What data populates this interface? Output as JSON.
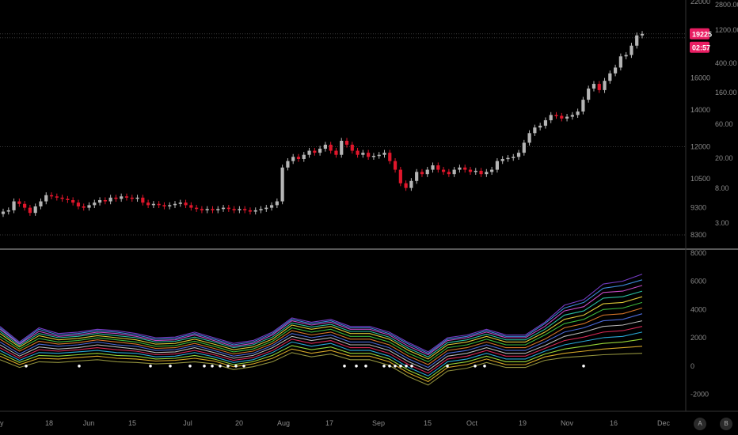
{
  "chart_data": [
    {
      "type": "candlestick",
      "title": "",
      "scale": "log",
      "ylim": [
        7900,
        22000
      ],
      "left_axis_ticks": [
        8300,
        9300,
        10500,
        12000,
        14000,
        16000,
        19225,
        22000
      ],
      "left_axis_labels": [
        "8300",
        "9300",
        "10500",
        "12000",
        "14000",
        "16000",
        "19225",
        "22000"
      ],
      "right_axis_labels": [
        "3.00",
        "8.00",
        "20.00",
        "60.00",
        "160.00",
        "400.00",
        "1200.00",
        "2800.00"
      ],
      "last_price": "19225",
      "countdown": "02:57",
      "colors": {
        "up": "#b5b5b5",
        "down": "#e0162b",
        "badge": "#e91e63"
      },
      "close_series": [
        9150,
        9200,
        9550,
        9450,
        9300,
        9100,
        9350,
        9550,
        9800,
        9750,
        9700,
        9650,
        9600,
        9500,
        9350,
        9300,
        9400,
        9500,
        9600,
        9550,
        9700,
        9650,
        9750,
        9700,
        9650,
        9700,
        9500,
        9400,
        9450,
        9400,
        9350,
        9400,
        9450,
        9500,
        9400,
        9300,
        9250,
        9200,
        9250,
        9200,
        9250,
        9300,
        9250,
        9200,
        9250,
        9200,
        9150,
        9200,
        9250,
        9300,
        9400,
        9550,
        11000,
        11300,
        11500,
        11400,
        11600,
        11800,
        11700,
        11900,
        12100,
        11800,
        11600,
        12300,
        12100,
        11800,
        11600,
        11700,
        11500,
        11550,
        11600,
        11700,
        11300,
        10900,
        10300,
        10100,
        10400,
        10800,
        10700,
        10900,
        11100,
        10900,
        10800,
        10700,
        10900,
        11000,
        10900,
        10800,
        10850,
        10700,
        10800,
        10900,
        11300,
        11400,
        11450,
        11500,
        11700,
        12200,
        12700,
        13000,
        13100,
        13400,
        13700,
        13650,
        13500,
        13600,
        13700,
        13900,
        14600,
        15300,
        15600,
        15200,
        15800,
        16300,
        16700,
        17500,
        17600,
        18300,
        19100,
        19225
      ]
    },
    {
      "type": "line",
      "title": "",
      "ylim": [
        -3200,
        8100
      ],
      "y_ticks": [
        -2000,
        0,
        2000,
        4000,
        6000,
        8000
      ],
      "y_labels": [
        "-2000",
        "0",
        "2000",
        "4000",
        "6000",
        "8000"
      ],
      "series": [
        {
          "color": "#7b3fd0",
          "values": [
            2800,
            1700,
            2700,
            2300,
            2400,
            2600,
            2500,
            2300,
            2000,
            2050,
            2400,
            2000,
            1600,
            1800,
            2400,
            3400,
            3100,
            3300,
            2800,
            2800,
            2400,
            1650,
            1000,
            2000,
            2200,
            2600,
            2200,
            2200,
            3100,
            4300,
            4700,
            5800,
            6000,
            6500
          ]
        },
        {
          "color": "#3f8fe0",
          "values": [
            2700,
            1600,
            2600,
            2200,
            2300,
            2500,
            2400,
            2200,
            1900,
            1950,
            2300,
            1900,
            1500,
            1700,
            2300,
            3300,
            3000,
            3200,
            2700,
            2700,
            2300,
            1550,
            900,
            1900,
            2100,
            2500,
            2100,
            2100,
            3000,
            4100,
            4500,
            5500,
            5700,
            6100
          ]
        },
        {
          "color": "#d04fd0",
          "values": [
            2600,
            1550,
            2450,
            2100,
            2200,
            2400,
            2300,
            2100,
            1800,
            1850,
            2200,
            1800,
            1400,
            1600,
            2200,
            3200,
            2900,
            3100,
            2600,
            2600,
            2200,
            1400,
            800,
            1800,
            2000,
            2400,
            2000,
            2000,
            2800,
            3900,
            4200,
            5200,
            5300,
            5700
          ]
        },
        {
          "color": "#2cc7a8",
          "values": [
            2450,
            1450,
            2300,
            2000,
            2100,
            2300,
            2150,
            2000,
            1700,
            1750,
            2050,
            1700,
            1300,
            1500,
            2050,
            3050,
            2750,
            2950,
            2450,
            2450,
            2050,
            1250,
            650,
            1650,
            1850,
            2250,
            1850,
            1850,
            2600,
            3600,
            3900,
            4800,
            4900,
            5300
          ]
        },
        {
          "color": "#e8d23a",
          "values": [
            2300,
            1350,
            2150,
            1850,
            1950,
            2150,
            2000,
            1850,
            1550,
            1600,
            1900,
            1550,
            1150,
            1350,
            1900,
            2900,
            2600,
            2800,
            2300,
            2300,
            1900,
            1100,
            500,
            1500,
            1700,
            2100,
            1700,
            1700,
            2400,
            3300,
            3600,
            4400,
            4500,
            4900
          ]
        },
        {
          "color": "#3fbf3f",
          "values": [
            2100,
            1200,
            1950,
            1700,
            1800,
            2000,
            1850,
            1700,
            1400,
            1450,
            1750,
            1400,
            1000,
            1200,
            1750,
            2700,
            2400,
            2600,
            2100,
            2100,
            1700,
            900,
            300,
            1300,
            1500,
            1900,
            1500,
            1500,
            2200,
            3000,
            3300,
            4000,
            4100,
            4500
          ]
        },
        {
          "color": "#e07a2a",
          "values": [
            1900,
            1050,
            1750,
            1550,
            1650,
            1850,
            1700,
            1550,
            1250,
            1300,
            1600,
            1250,
            850,
            1050,
            1600,
            2500,
            2200,
            2400,
            1900,
            1900,
            1500,
            700,
            100,
            1100,
            1300,
            1700,
            1300,
            1300,
            1900,
            2700,
            3000,
            3600,
            3700,
            4100
          ]
        },
        {
          "color": "#4f6fe0",
          "values": [
            1700,
            850,
            1550,
            1400,
            1500,
            1700,
            1500,
            1400,
            1100,
            1150,
            1450,
            1100,
            700,
            900,
            1450,
            2300,
            2000,
            2200,
            1700,
            1700,
            1300,
            500,
            -100,
            900,
            1100,
            1500,
            1100,
            1100,
            1700,
            2400,
            2700,
            3200,
            3300,
            3700
          ]
        },
        {
          "color": "#c0c0c0",
          "values": [
            1500,
            700,
            1350,
            1200,
            1300,
            1500,
            1350,
            1200,
            950,
            1000,
            1300,
            950,
            550,
            750,
            1300,
            2100,
            1800,
            2000,
            1500,
            1500,
            1100,
            300,
            -300,
            700,
            900,
            1300,
            900,
            900,
            1450,
            2100,
            2400,
            2800,
            2900,
            3200
          ]
        },
        {
          "color": "#e02a5a",
          "values": [
            1300,
            550,
            1150,
            1050,
            1150,
            1300,
            1150,
            1050,
            800,
            850,
            1100,
            800,
            400,
            600,
            1100,
            1900,
            1600,
            1800,
            1300,
            1300,
            900,
            100,
            -500,
            500,
            700,
            1100,
            700,
            700,
            1250,
            1800,
            2050,
            2400,
            2500,
            2800
          ]
        },
        {
          "color": "#2ab0e0",
          "values": [
            1100,
            400,
            950,
            900,
            1000,
            1100,
            950,
            900,
            650,
            700,
            950,
            650,
            250,
            450,
            950,
            1700,
            1400,
            1600,
            1100,
            1100,
            700,
            -100,
            -700,
            300,
            500,
            900,
            500,
            500,
            1050,
            1500,
            1750,
            2000,
            2100,
            2400
          ]
        },
        {
          "color": "#a0e03a",
          "values": [
            900,
            250,
            750,
            700,
            800,
            900,
            750,
            700,
            500,
            550,
            750,
            500,
            100,
            300,
            750,
            1450,
            1150,
            1350,
            900,
            900,
            500,
            -300,
            -900,
            100,
            300,
            700,
            300,
            300,
            850,
            1200,
            1400,
            1600,
            1700,
            1900
          ]
        },
        {
          "color": "#e0b02a",
          "values": [
            700,
            100,
            550,
            500,
            600,
            700,
            550,
            500,
            350,
            400,
            550,
            350,
            -50,
            150,
            550,
            1200,
            900,
            1100,
            700,
            700,
            300,
            -500,
            -1100,
            -100,
            100,
            500,
            100,
            100,
            650,
            900,
            1050,
            1200,
            1300,
            1400
          ]
        },
        {
          "color": "#9a9a40",
          "values": [
            450,
            -100,
            300,
            250,
            350,
            450,
            300,
            250,
            150,
            200,
            300,
            150,
            -250,
            -50,
            300,
            950,
            650,
            850,
            450,
            450,
            50,
            -750,
            -1350,
            -350,
            -150,
            250,
            -100,
            -100,
            400,
            600,
            700,
            800,
            850,
            900
          ]
        }
      ],
      "marker_color": "#ffffff"
    }
  ],
  "x_axis": {
    "labels": [
      "y",
      "18",
      "Jun",
      "15",
      "Jul",
      "20",
      "Aug",
      "17",
      "Sep",
      "15",
      "Oct",
      "19",
      "Nov",
      "16",
      "Dec"
    ]
  },
  "corner_buttons": {
    "auto": "A",
    "log": "B"
  },
  "colors": {
    "background": "#000000",
    "grid": "#2f2f2f",
    "pane_divider": "#b0b0b0"
  }
}
